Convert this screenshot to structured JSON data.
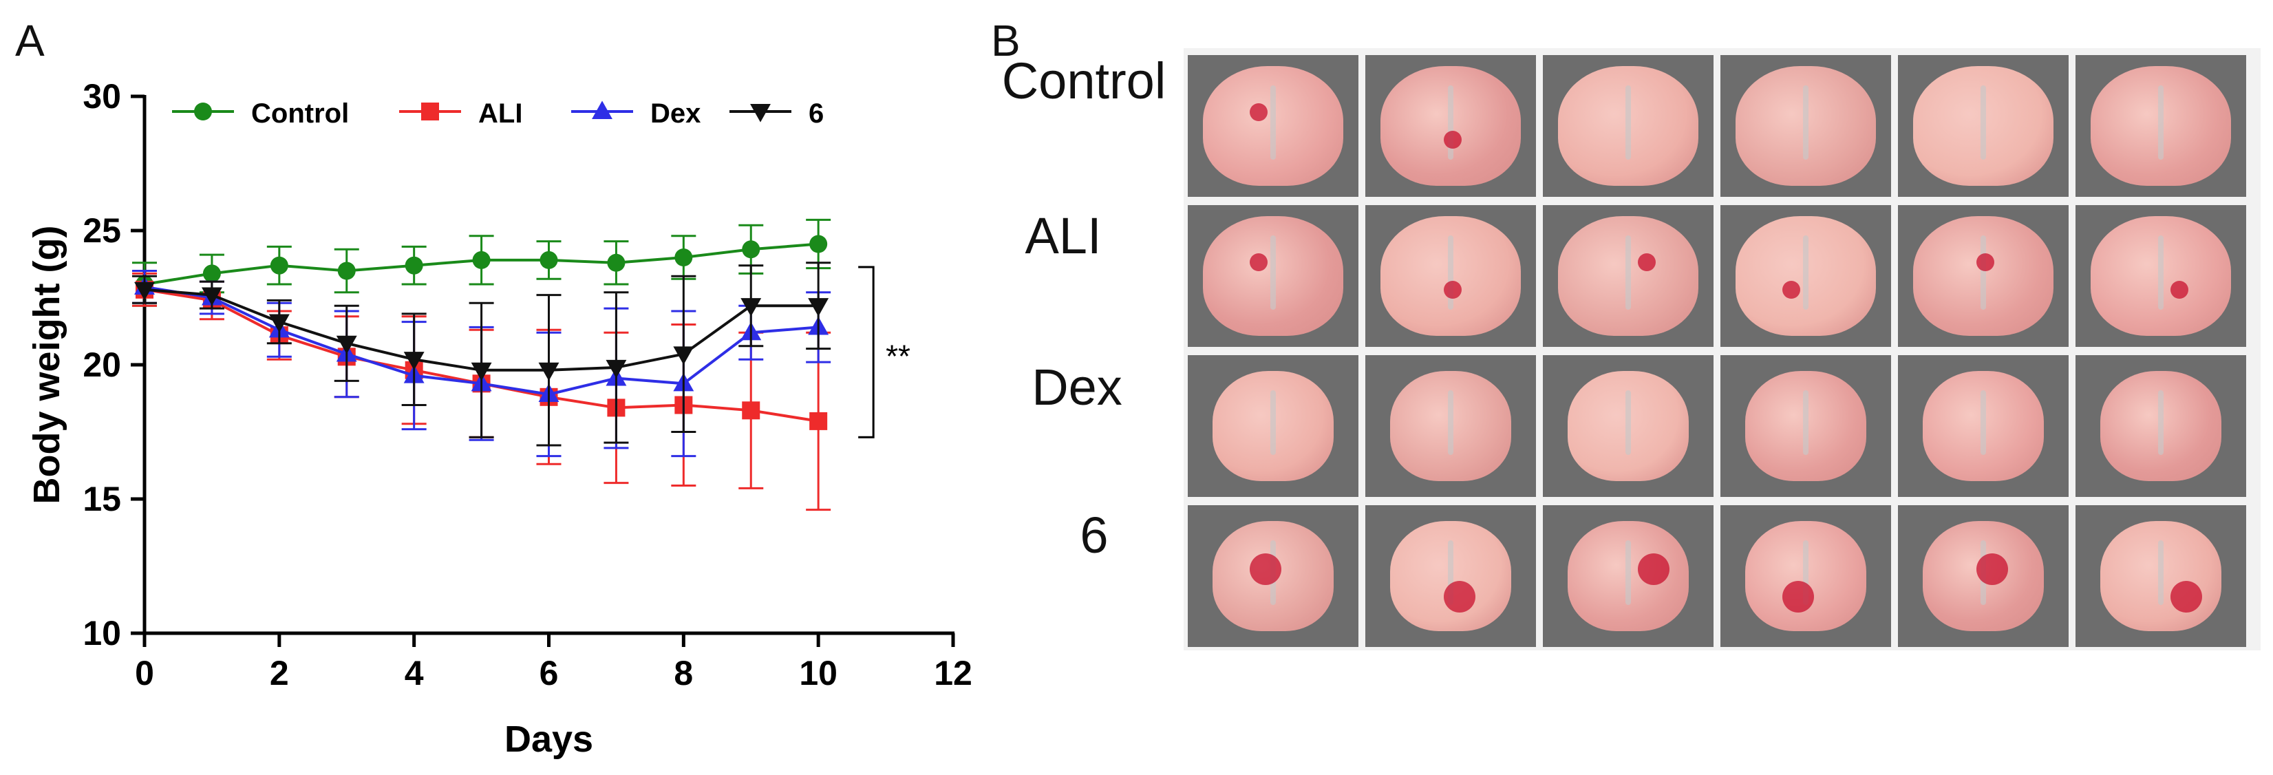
{
  "panel_a": {
    "letter": "A",
    "chart_data": {
      "type": "line",
      "xlabel": "Days",
      "ylabel": "Body weight (g)",
      "xlim": [
        0,
        12
      ],
      "ylim": [
        10,
        30
      ],
      "xticks": [
        0,
        2,
        4,
        6,
        8,
        10,
        12
      ],
      "yticks": [
        10,
        15,
        20,
        25,
        30
      ],
      "x": [
        0,
        1,
        2,
        3,
        4,
        5,
        6,
        7,
        8,
        9,
        10
      ],
      "legend_position": "top",
      "grid": false,
      "series": [
        {
          "name": "Control",
          "color": "#1a8a1a",
          "marker": "circle",
          "values": [
            23.0,
            23.4,
            23.7,
            23.5,
            23.7,
            23.9,
            23.9,
            23.8,
            24.0,
            24.3,
            24.5
          ],
          "errors": [
            0.8,
            0.7,
            0.7,
            0.8,
            0.7,
            0.9,
            0.7,
            0.8,
            0.8,
            0.9,
            0.9
          ]
        },
        {
          "name": "ALI",
          "color": "#ee2b2b",
          "marker": "square",
          "values": [
            22.8,
            22.4,
            21.1,
            20.3,
            19.8,
            19.3,
            18.8,
            18.4,
            18.5,
            18.3,
            17.9
          ],
          "errors": [
            0.6,
            0.7,
            0.9,
            1.5,
            2.0,
            2.0,
            2.5,
            2.8,
            3.0,
            2.9,
            3.3
          ]
        },
        {
          "name": "Dex",
          "color": "#2e2ee6",
          "marker": "triangle-up",
          "values": [
            22.9,
            22.5,
            21.3,
            20.4,
            19.6,
            19.3,
            18.9,
            19.5,
            19.3,
            21.2,
            21.4
          ],
          "errors": [
            0.6,
            0.6,
            1.0,
            1.6,
            2.0,
            2.1,
            2.3,
            2.6,
            2.7,
            1.0,
            1.3
          ]
        },
        {
          "name": "6",
          "color": "#111111",
          "marker": "triangle-down",
          "values": [
            22.8,
            22.6,
            21.6,
            20.8,
            20.2,
            19.8,
            19.8,
            19.9,
            20.4,
            22.2,
            22.2
          ],
          "errors": [
            0.5,
            0.5,
            0.8,
            1.4,
            1.7,
            2.5,
            2.8,
            2.8,
            2.9,
            1.5,
            1.6
          ]
        }
      ],
      "annotation": {
        "text": "**",
        "between_series": [
          "6",
          "ALI"
        ],
        "x": 10
      }
    }
  },
  "panel_b": {
    "letter": "B",
    "rows": [
      {
        "label": "Control",
        "tiles": 6
      },
      {
        "label": "ALI",
        "tiles": 6
      },
      {
        "label": "Dex",
        "tiles": 6
      },
      {
        "label": "6",
        "tiles": 6
      }
    ]
  }
}
